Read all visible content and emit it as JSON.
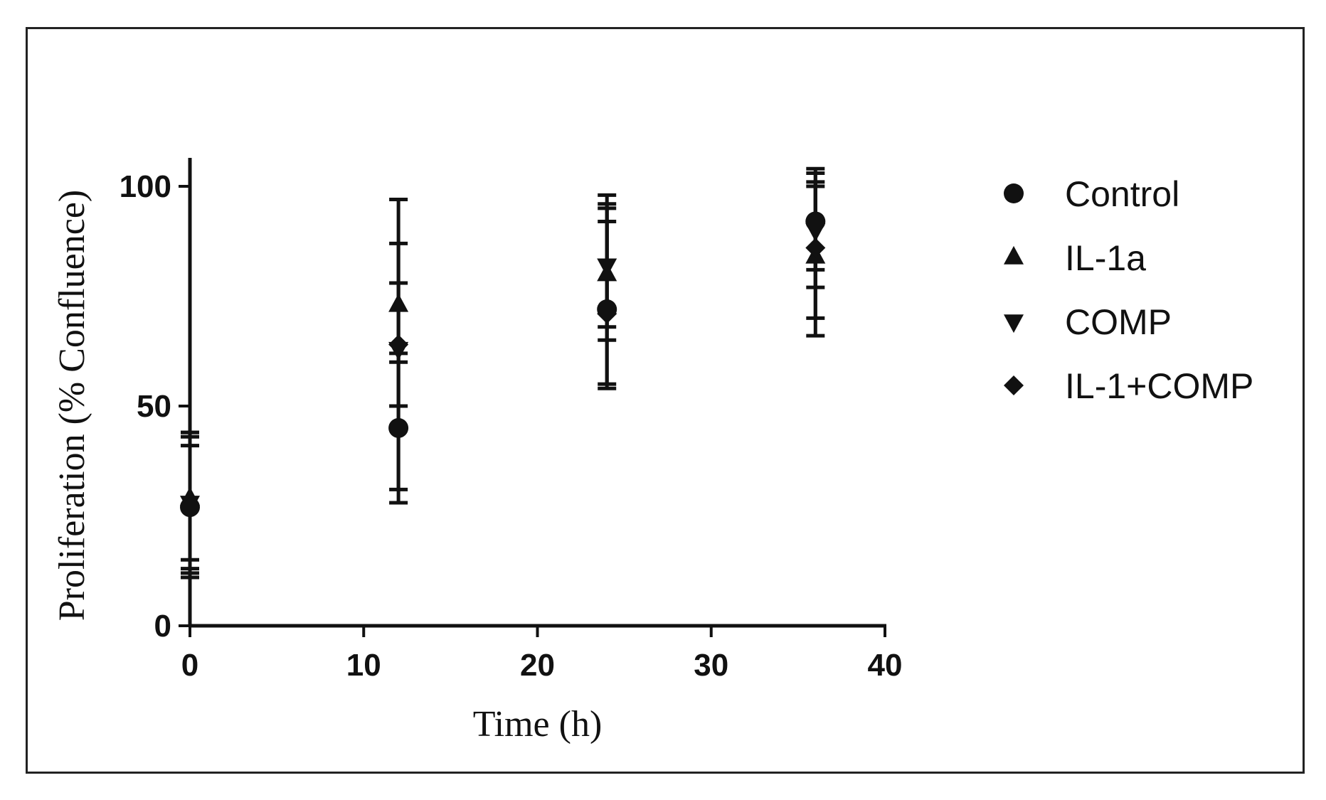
{
  "chart_data": {
    "type": "scatter",
    "title": "",
    "xlabel": "Time (h)",
    "ylabel": "Proliferation (% Confluence)",
    "xlim": [
      0,
      40
    ],
    "ylim": [
      0,
      100
    ],
    "x_ticks": [
      0,
      10,
      20,
      30,
      40
    ],
    "y_ticks": [
      0,
      50,
      100
    ],
    "x_tick_labels": [
      "0",
      "10",
      "20",
      "30",
      "40"
    ],
    "y_tick_labels": [
      "0",
      "50",
      "100"
    ],
    "grid": false,
    "legend_position": "right",
    "marker_color": "#111111",
    "series": [
      {
        "name": "Control",
        "marker": "circle",
        "points": [
          {
            "x": 0,
            "y": 27,
            "err_low": 13,
            "err_high": 41
          },
          {
            "x": 12,
            "y": 45,
            "err_low": 28,
            "err_high": 62
          },
          {
            "x": 24,
            "y": 72,
            "err_low": 54,
            "err_high": 92
          },
          {
            "x": 36,
            "y": 92,
            "err_low": 81,
            "err_high": 103
          }
        ]
      },
      {
        "name": "IL-1a",
        "marker": "triangle-up",
        "points": [
          {
            "x": 0,
            "y": 29,
            "err_low": 15,
            "err_high": 43
          },
          {
            "x": 12,
            "y": 73,
            "err_low": 60,
            "err_high": 87
          },
          {
            "x": 24,
            "y": 80,
            "err_low": 65,
            "err_high": 95
          },
          {
            "x": 36,
            "y": 84,
            "err_low": 66,
            "err_high": 101
          }
        ]
      },
      {
        "name": "COMP",
        "marker": "triangle-down",
        "points": [
          {
            "x": 0,
            "y": 28,
            "err_low": 12,
            "err_high": 44
          },
          {
            "x": 12,
            "y": 63,
            "err_low": 31,
            "err_high": 97
          },
          {
            "x": 24,
            "y": 82,
            "err_low": 68,
            "err_high": 96
          },
          {
            "x": 36,
            "y": 90,
            "err_low": 77,
            "err_high": 104
          }
        ]
      },
      {
        "name": "IL-1+COMP",
        "marker": "diamond",
        "points": [
          {
            "x": 0,
            "y": 27,
            "err_low": 11,
            "err_high": 44
          },
          {
            "x": 12,
            "y": 64,
            "err_low": 50,
            "err_high": 78
          },
          {
            "x": 24,
            "y": 71,
            "err_low": 55,
            "err_high": 98
          },
          {
            "x": 36,
            "y": 86,
            "err_low": 70,
            "err_high": 100
          }
        ]
      }
    ]
  }
}
